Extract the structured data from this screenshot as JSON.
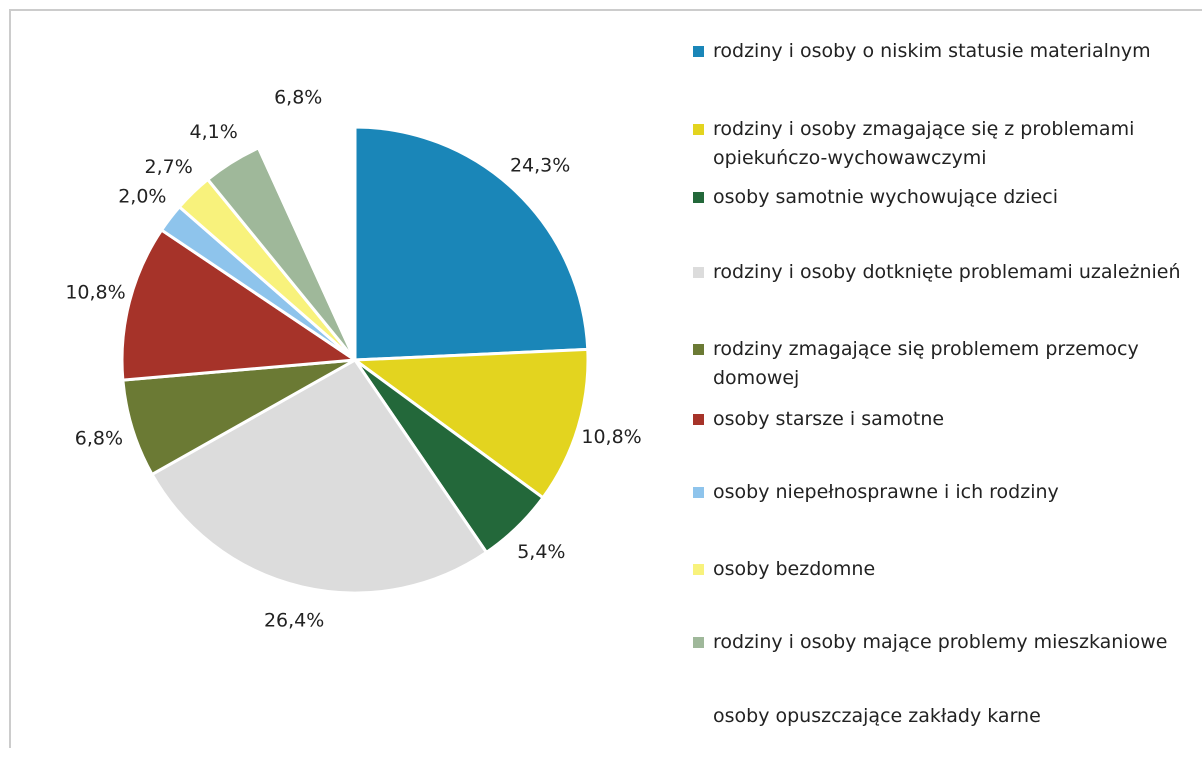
{
  "chart_data": {
    "type": "pie",
    "categories": [
      "rodziny i osoby o niskim statusie materialnym",
      "rodziny i osoby zmagające się z problemami opiekuńczo-wychowawczymi",
      "osoby samotnie wychowujące dzieci",
      "rodziny i osoby dotknięte problemami uzależnień",
      "rodziny zmagające się problemem przemocy domowej",
      "osoby starsze i samotne",
      "osoby niepełnosprawne i ich rodziny",
      "osoby bezdomne",
      "rodziny i osoby mające problemy mieszkaniowe",
      "osoby opuszczające zakłady karne"
    ],
    "values": [
      24.3,
      10.8,
      5.4,
      26.4,
      6.8,
      10.8,
      2.0,
      2.7,
      4.1,
      6.8
    ],
    "value_labels": [
      "24,3%",
      "10,8%",
      "5,4%",
      "26,4%",
      "6,8%",
      "10,8%",
      "2,0%",
      "2,7%",
      "4,1%",
      "6,8%"
    ],
    "colors": [
      "#1a86b8",
      "#e3d41f",
      "#23683a",
      "#dcdcdc",
      "#6b7a34",
      "#a63329",
      "#8ec4ec",
      "#f8f27c",
      "#9fb89a",
      "#ffffff"
    ],
    "legend": "right"
  }
}
